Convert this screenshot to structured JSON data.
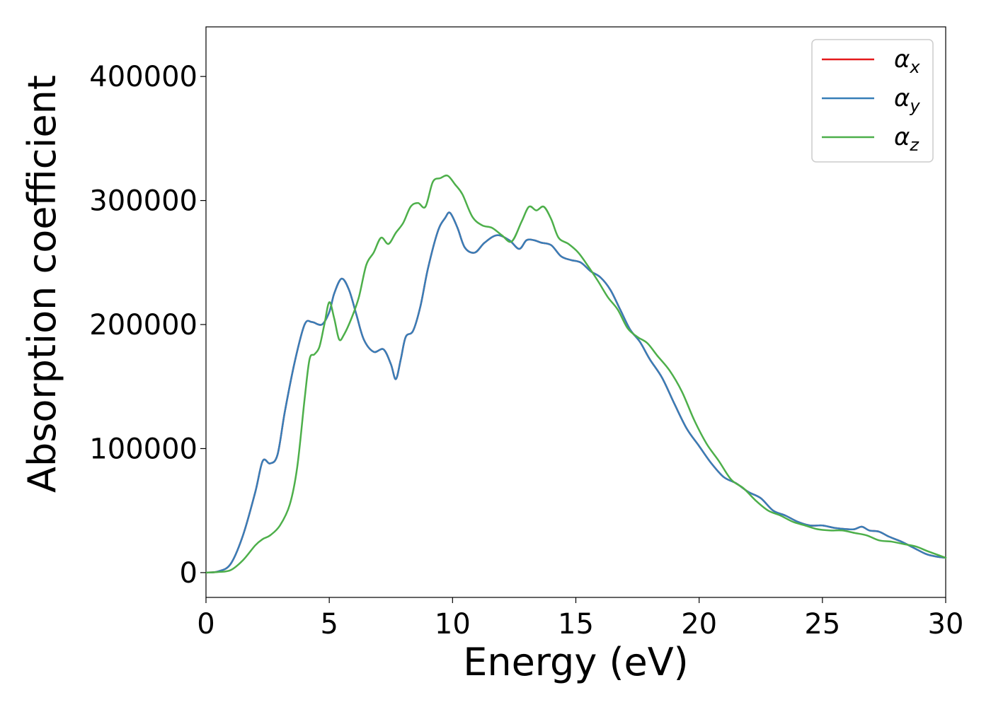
{
  "chart_data": {
    "type": "line",
    "title": "",
    "xlabel": "Energy (eV)",
    "ylabel": "Absorption coefficient",
    "xlim": [
      0,
      30
    ],
    "ylim": [
      -20000,
      440000
    ],
    "xticks": [
      0,
      5,
      10,
      15,
      20,
      25,
      30
    ],
    "xtick_labels": [
      "0",
      "5",
      "10",
      "15",
      "20",
      "25",
      "30"
    ],
    "yticks": [
      0,
      100000,
      200000,
      300000,
      400000
    ],
    "ytick_labels": [
      "0",
      "100000",
      "200000",
      "300000",
      "400000"
    ],
    "grid": false,
    "legend": {
      "placement": "top-right"
    },
    "series": [
      {
        "name": "α",
        "subscript": "x",
        "color": "#e41a1c",
        "x": [
          0,
          0.5,
          1.0,
          1.5,
          2.0,
          2.3,
          2.6,
          2.9,
          3.2,
          3.6,
          4.0,
          4.3,
          4.7,
          5.0,
          5.2,
          5.5,
          5.8,
          6.1,
          6.4,
          6.8,
          7.2,
          7.5,
          7.7,
          7.9,
          8.1,
          8.4,
          8.7,
          9.0,
          9.4,
          9.7,
          9.9,
          10.2,
          10.5,
          10.9,
          11.3,
          11.8,
          12.3,
          12.7,
          13.0,
          13.3,
          13.6,
          14.0,
          14.4,
          14.8,
          15.2,
          15.6,
          16.0,
          16.4,
          16.8,
          17.2,
          17.6,
          18.0,
          18.5,
          19.0,
          19.5,
          20.0,
          20.5,
          21.0,
          21.5,
          22.0,
          22.5,
          23.0,
          23.5,
          24.0,
          24.5,
          25.0,
          25.5,
          26.0,
          26.3,
          26.6,
          26.9,
          27.3,
          27.7,
          28.2,
          28.7,
          29.2,
          29.6,
          30.0
        ],
        "y": [
          0,
          1000,
          7000,
          30000,
          65000,
          90000,
          88000,
          95000,
          130000,
          170000,
          200000,
          202000,
          200000,
          210000,
          225000,
          237000,
          228000,
          208000,
          188000,
          178000,
          180000,
          168000,
          156000,
          172000,
          190000,
          195000,
          215000,
          245000,
          275000,
          286000,
          290000,
          278000,
          262000,
          258000,
          266000,
          272000,
          268000,
          261000,
          268000,
          268000,
          266000,
          264000,
          255000,
          252000,
          250000,
          243000,
          238000,
          228000,
          212000,
          196000,
          186000,
          172000,
          157000,
          136000,
          116000,
          102000,
          88000,
          77000,
          72000,
          65000,
          60000,
          50000,
          46000,
          41000,
          38000,
          38000,
          36000,
          35000,
          35000,
          37000,
          34000,
          33000,
          29000,
          25000,
          20000,
          15000,
          13000,
          12000
        ]
      },
      {
        "name": "α",
        "subscript": "y",
        "color": "#377eb8",
        "x": [
          0,
          0.5,
          1.0,
          1.5,
          2.0,
          2.3,
          2.6,
          2.9,
          3.2,
          3.6,
          4.0,
          4.3,
          4.7,
          5.0,
          5.2,
          5.5,
          5.8,
          6.1,
          6.4,
          6.8,
          7.2,
          7.5,
          7.7,
          7.9,
          8.1,
          8.4,
          8.7,
          9.0,
          9.4,
          9.7,
          9.9,
          10.2,
          10.5,
          10.9,
          11.3,
          11.8,
          12.3,
          12.7,
          13.0,
          13.3,
          13.6,
          14.0,
          14.4,
          14.8,
          15.2,
          15.6,
          16.0,
          16.4,
          16.8,
          17.2,
          17.6,
          18.0,
          18.5,
          19.0,
          19.5,
          20.0,
          20.5,
          21.0,
          21.5,
          22.0,
          22.5,
          23.0,
          23.5,
          24.0,
          24.5,
          25.0,
          25.5,
          26.0,
          26.3,
          26.6,
          26.9,
          27.3,
          27.7,
          28.2,
          28.7,
          29.2,
          29.6,
          30.0
        ],
        "y": [
          0,
          1000,
          7000,
          30000,
          65000,
          90000,
          88000,
          95000,
          130000,
          170000,
          200000,
          202000,
          200000,
          210000,
          225000,
          237000,
          228000,
          208000,
          188000,
          178000,
          180000,
          168000,
          156000,
          172000,
          190000,
          195000,
          215000,
          245000,
          275000,
          286000,
          290000,
          278000,
          262000,
          258000,
          266000,
          272000,
          268000,
          261000,
          268000,
          268000,
          266000,
          264000,
          255000,
          252000,
          250000,
          243000,
          238000,
          228000,
          212000,
          196000,
          186000,
          172000,
          157000,
          136000,
          116000,
          102000,
          88000,
          77000,
          72000,
          65000,
          60000,
          50000,
          46000,
          41000,
          38000,
          38000,
          36000,
          35000,
          35000,
          37000,
          34000,
          33000,
          29000,
          25000,
          20000,
          15000,
          13000,
          12000
        ]
      },
      {
        "name": "α",
        "subscript": "z",
        "color": "#4daf4a",
        "x": [
          0,
          0.5,
          1.0,
          1.5,
          2.0,
          2.3,
          2.6,
          3.0,
          3.4,
          3.7,
          4.0,
          4.2,
          4.4,
          4.6,
          4.8,
          5.0,
          5.2,
          5.4,
          5.6,
          5.9,
          6.2,
          6.5,
          6.8,
          7.1,
          7.4,
          7.7,
          8.0,
          8.3,
          8.6,
          8.9,
          9.2,
          9.5,
          9.8,
          10.1,
          10.4,
          10.8,
          11.2,
          11.6,
          12.0,
          12.4,
          12.8,
          13.1,
          13.4,
          13.7,
          14.0,
          14.3,
          14.7,
          15.1,
          15.5,
          15.9,
          16.3,
          16.7,
          17.1,
          17.5,
          17.9,
          18.3,
          18.8,
          19.3,
          19.8,
          20.3,
          20.8,
          21.3,
          21.8,
          22.3,
          22.8,
          23.3,
          23.8,
          24.3,
          24.8,
          25.3,
          25.8,
          26.3,
          26.8,
          27.3,
          27.8,
          28.3,
          28.8,
          29.3,
          30.0
        ],
        "y": [
          0,
          500,
          2000,
          10000,
          22000,
          27000,
          30000,
          38000,
          55000,
          85000,
          140000,
          172000,
          176000,
          182000,
          200000,
          218000,
          205000,
          188000,
          192000,
          205000,
          222000,
          248000,
          258000,
          270000,
          265000,
          274000,
          282000,
          295000,
          298000,
          295000,
          315000,
          318000,
          320000,
          313000,
          305000,
          287000,
          280000,
          278000,
          272000,
          267000,
          283000,
          295000,
          292000,
          295000,
          285000,
          270000,
          265000,
          258000,
          247000,
          235000,
          222000,
          212000,
          197000,
          190000,
          185000,
          175000,
          163000,
          146000,
          123000,
          104000,
          90000,
          75000,
          68000,
          58000,
          50000,
          46000,
          41000,
          38000,
          35000,
          34000,
          34000,
          32000,
          30000,
          26000,
          25000,
          23000,
          21000,
          17000,
          12000
        ]
      }
    ]
  }
}
